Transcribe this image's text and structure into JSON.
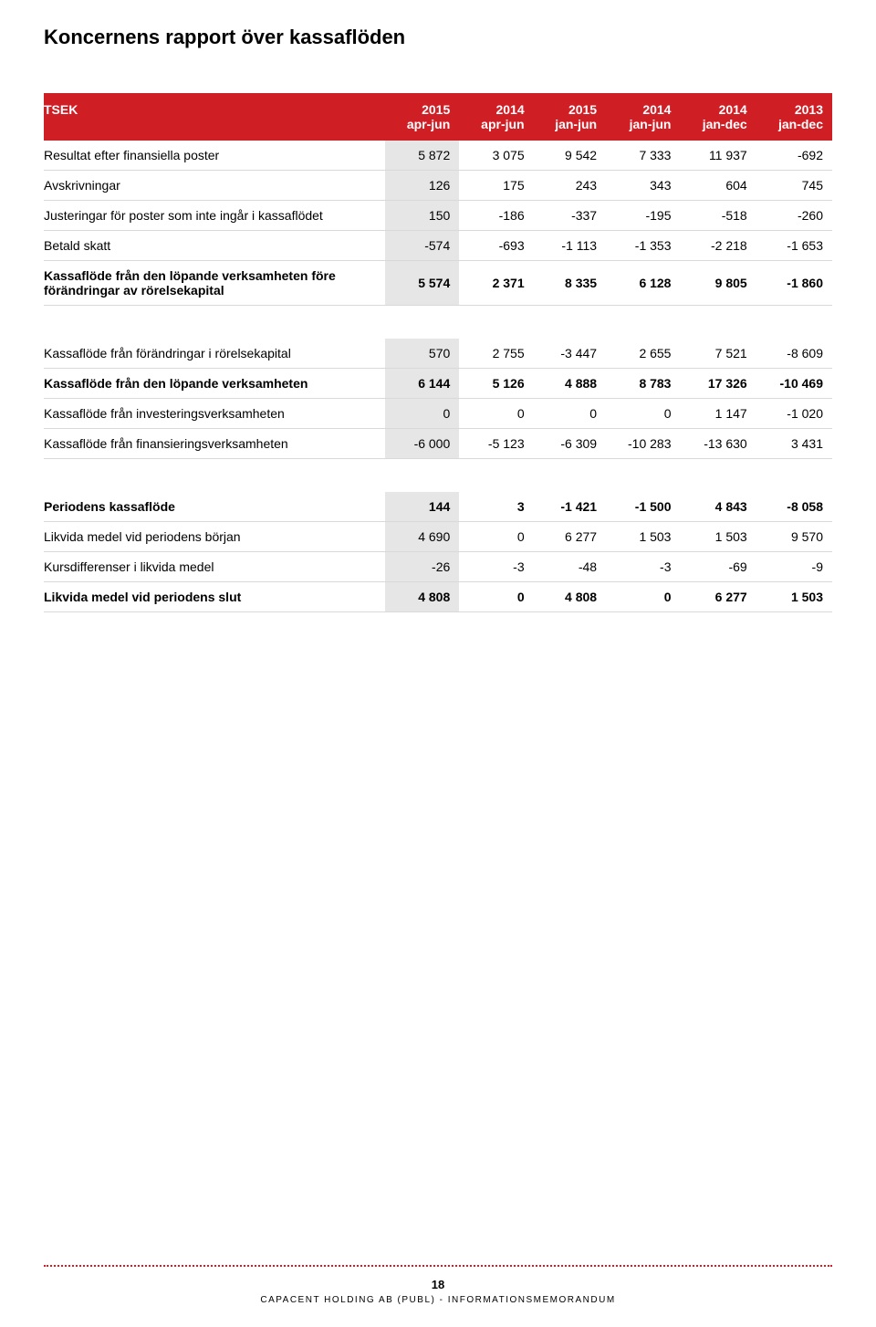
{
  "title": "Koncernens rapport över kassaflöden",
  "header": {
    "col0": "TSEK",
    "cols": [
      {
        "y": "2015",
        "p": "apr-jun"
      },
      {
        "y": "2014",
        "p": "apr-jun"
      },
      {
        "y": "2015",
        "p": "jan-jun"
      },
      {
        "y": "2014",
        "p": "jan-jun"
      },
      {
        "y": "2014",
        "p": "jan-dec"
      },
      {
        "y": "2013",
        "p": "jan-dec"
      }
    ]
  },
  "section1": [
    {
      "label": "Resultat efter finansiella poster",
      "vals": [
        "5 872",
        "3 075",
        "9 542",
        "7 333",
        "11 937",
        "-692"
      ],
      "bold": false
    },
    {
      "label": "Avskrivningar",
      "vals": [
        "126",
        "175",
        "243",
        "343",
        "604",
        "745"
      ],
      "bold": false
    },
    {
      "label": "Justeringar för poster som inte ingår i kassaflödet",
      "vals": [
        "150",
        "-186",
        "-337",
        "-195",
        "-518",
        "-260"
      ],
      "bold": false
    },
    {
      "label": "Betald skatt",
      "vals": [
        "-574",
        "-693",
        "-1 113",
        "-1 353",
        "-2 218",
        "-1 653"
      ],
      "bold": false
    },
    {
      "label": "Kassaflöde från den löpande verksamheten före förändringar av rörelsekapital",
      "vals": [
        "5 574",
        "2 371",
        "8 335",
        "6 128",
        "9 805",
        "-1 860"
      ],
      "bold": true
    }
  ],
  "section2": [
    {
      "label": "Kassaflöde från förändringar i rörelsekapital",
      "vals": [
        "570",
        "2 755",
        "-3 447",
        "2 655",
        "7 521",
        "-8 609"
      ],
      "bold": false
    },
    {
      "label": "Kassaflöde från den löpande verksamheten",
      "vals": [
        "6 144",
        "5 126",
        "4 888",
        "8 783",
        "17 326",
        "-10 469"
      ],
      "bold": true
    },
    {
      "label": "Kassaflöde från investeringsverksamheten",
      "vals": [
        "0",
        "0",
        "0",
        "0",
        "1 147",
        "-1 020"
      ],
      "bold": false
    },
    {
      "label": "Kassaflöde från finansieringsverksamheten",
      "vals": [
        "-6 000",
        "-5 123",
        "-6 309",
        "-10 283",
        "-13 630",
        "3 431"
      ],
      "bold": false
    }
  ],
  "section3": [
    {
      "label": "Periodens kassaflöde",
      "vals": [
        "144",
        "3",
        "-1 421",
        "-1 500",
        "4 843",
        "-8 058"
      ],
      "bold": true
    },
    {
      "label": "Likvida medel vid periodens början",
      "vals": [
        "4 690",
        "0",
        "6 277",
        "1 503",
        "1 503",
        "9 570"
      ],
      "bold": false
    },
    {
      "label": "Kursdifferenser i likvida medel",
      "vals": [
        "-26",
        "-3",
        "-48",
        "-3",
        "-69",
        "-9"
      ],
      "bold": false
    },
    {
      "label": "Likvida medel vid periodens slut",
      "vals": [
        "4 808",
        "0",
        "4 808",
        "0",
        "6 277",
        "1 503"
      ],
      "bold": true
    }
  ],
  "footer": {
    "page": "18",
    "text": "CAPACENT HOLDING AB (PUBL) - INFORMATIONSMEMORANDUM"
  },
  "style": {
    "header_bg": "#d01e25",
    "header_fg": "#ffffff",
    "shade_bg": "#e6e6e6",
    "border_color": "#d9d9d9",
    "dot_color": "#d01e25",
    "title_fontsize": 22,
    "body_fontsize": 14,
    "footer_fontsize": 10
  }
}
